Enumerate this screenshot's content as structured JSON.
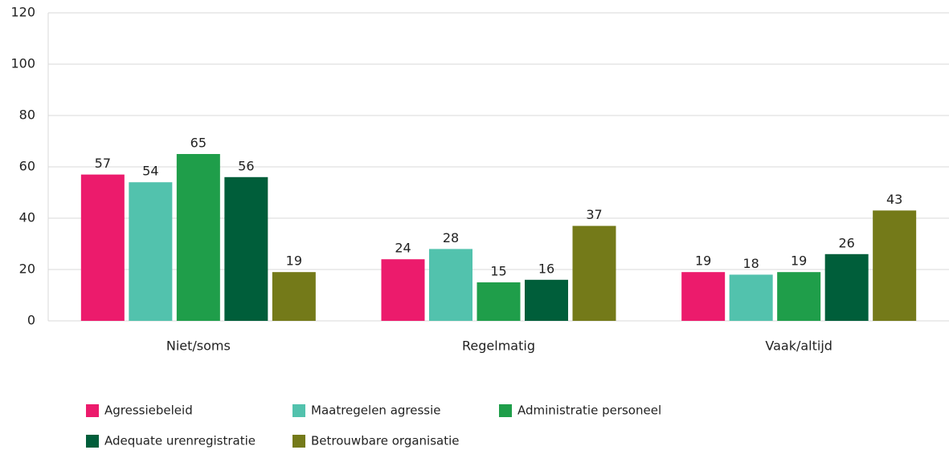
{
  "chart_data": {
    "type": "bar",
    "categories": [
      "Niet/soms",
      "Regelmatig",
      "Vaak/altijd"
    ],
    "series": [
      {
        "name": "Agressiebeleid",
        "color": "#ec1b6c",
        "values": [
          57,
          24,
          19
        ]
      },
      {
        "name": "Maatregelen agressie",
        "color": "#52c2ad",
        "values": [
          54,
          28,
          18
        ]
      },
      {
        "name": "Administratie personeel",
        "color": "#1f9e4a",
        "values": [
          65,
          15,
          19
        ]
      },
      {
        "name": "Adequate urenregistratie",
        "color": "#005e3a",
        "values": [
          56,
          16,
          26
        ]
      },
      {
        "name": "Betrouwbare organisatie",
        "color": "#747a19",
        "values": [
          19,
          37,
          43
        ]
      }
    ],
    "ylim": [
      0,
      120
    ],
    "yticks": [
      0,
      20,
      40,
      60,
      80,
      100,
      120
    ],
    "grid": true,
    "legend": "bottom"
  }
}
